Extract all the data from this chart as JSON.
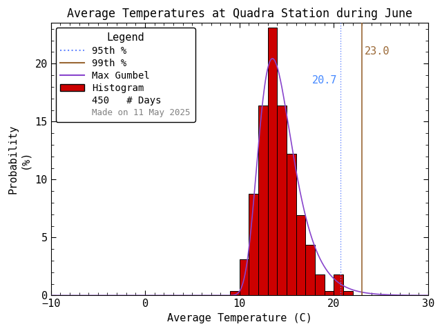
{
  "title": "Average Temperatures at Quadra Station during June",
  "xlabel": "Average Temperature (C)",
  "ylabel_top": "Probability",
  "ylabel_bot": "(%)",
  "xlim": [
    -10,
    30
  ],
  "ylim": [
    0,
    23.5
  ],
  "xticks": [
    -10,
    0,
    10,
    20,
    30
  ],
  "yticks": [
    0,
    5,
    10,
    15,
    20
  ],
  "bar_edges": [
    9,
    10,
    11,
    12,
    13,
    14,
    15,
    16,
    17,
    18,
    19,
    20,
    21
  ],
  "bar_heights": [
    0.4,
    3.1,
    8.8,
    16.4,
    23.1,
    16.4,
    12.2,
    6.9,
    4.4,
    1.8,
    0.4,
    1.8,
    0.4
  ],
  "bar_color": "#cc0000",
  "bar_edge_color": "#000000",
  "gumbel_mu": 13.5,
  "gumbel_beta": 1.8,
  "percentile_95": 20.7,
  "percentile_99": 23.0,
  "n_days": 450,
  "made_on": "Made on 11 May 2025",
  "p95_color": "#6688ff",
  "p99_color": "#996633",
  "gumbel_color": "#8844cc",
  "p95_label_color": "#4488ff",
  "p99_label_color": "#996633",
  "background_color": "#ffffff",
  "title_fontsize": 12,
  "axis_fontsize": 11,
  "tick_fontsize": 11,
  "legend_fontsize": 10,
  "annotation_fontsize": 11
}
